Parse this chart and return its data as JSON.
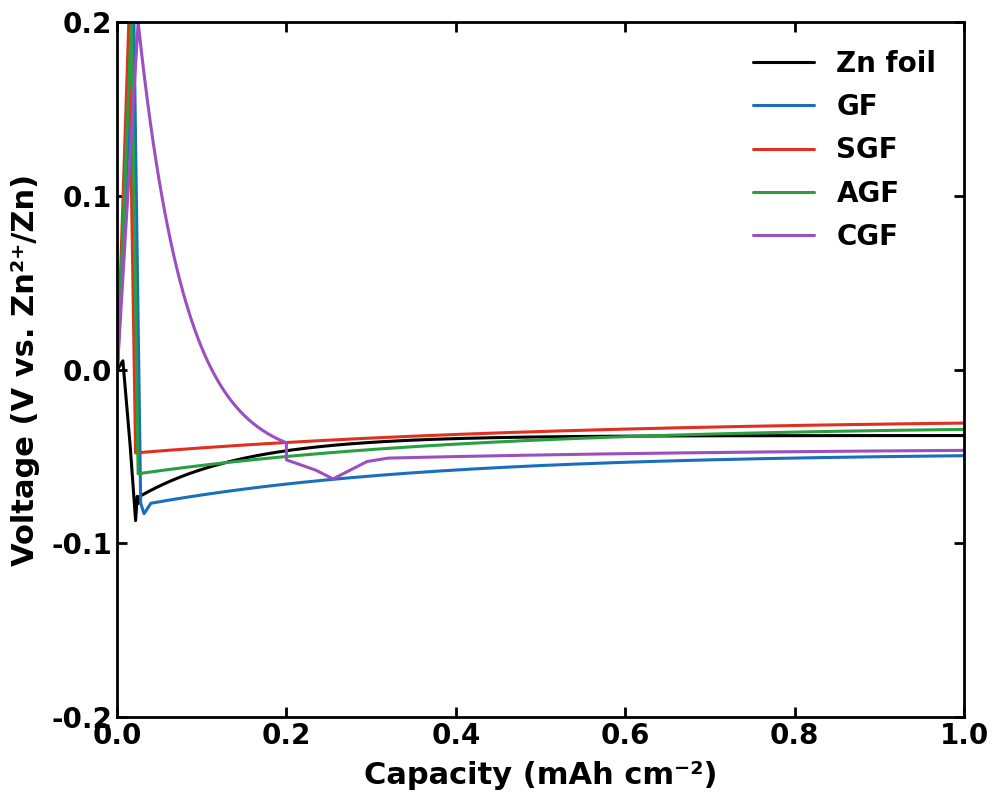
{
  "title": "",
  "xlabel": "Capacity (mAh cm⁻²)",
  "ylabel": "Voltage (V vs. Zn²⁺/Zn)",
  "xlim": [
    0,
    1.0
  ],
  "ylim": [
    -0.2,
    0.2
  ],
  "xticks": [
    0.0,
    0.2,
    0.4,
    0.6,
    0.8,
    1.0
  ],
  "yticks": [
    -0.2,
    -0.1,
    0.0,
    0.1,
    0.2
  ],
  "series": [
    {
      "label": "Zn foil",
      "color": "#000000"
    },
    {
      "label": "GF",
      "color": "#1a6fbd"
    },
    {
      "label": "SGF",
      "color": "#e03020"
    },
    {
      "label": "AGF",
      "color": "#28a040"
    },
    {
      "label": "CGF",
      "color": "#9b50c0"
    }
  ],
  "linewidth": 2.2,
  "legend_fontsize": 20,
  "axis_label_fontsize": 22,
  "tick_fontsize": 20,
  "background_color": "#ffffff"
}
